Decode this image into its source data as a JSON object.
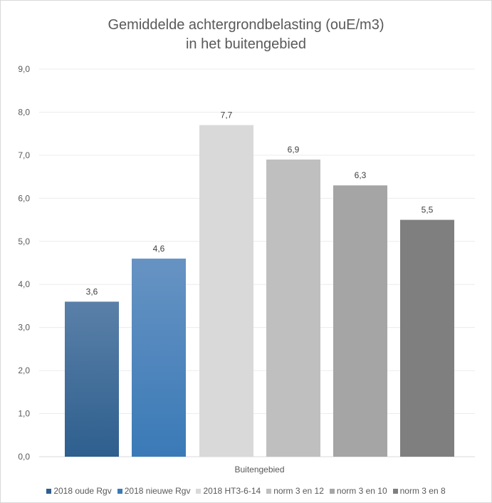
{
  "chart_data": {
    "type": "bar",
    "title_lines": [
      "Gemiddelde achtergrondbelasting (ouE/m3)",
      "in het buitengebied"
    ],
    "categories": [
      "Buitengebied"
    ],
    "ylim": [
      0,
      9
    ],
    "y_ticks": [
      "0,0",
      "1,0",
      "2,0",
      "3,0",
      "4,0",
      "5,0",
      "6,0",
      "7,0",
      "8,0",
      "9,0"
    ],
    "grid": true,
    "legend_position": "bottom",
    "series": [
      {
        "name": "2018 oude Rgv",
        "values": [
          3.6
        ],
        "label": "3,6",
        "color": "#2e5f8e",
        "color_top": "#5a80a8"
      },
      {
        "name": "2018 nieuwe Rgv",
        "values": [
          4.6
        ],
        "label": "4,6",
        "color": "#3a7ab7",
        "color_top": "#6793c3"
      },
      {
        "name": "2018 HT3-6-14",
        "values": [
          7.7
        ],
        "label": "7,7",
        "color": "#d9d9d9",
        "color_top": "#d9d9d9"
      },
      {
        "name": "norm 3 en 12",
        "values": [
          6.9
        ],
        "label": "6,9",
        "color": "#bfbfbf",
        "color_top": "#bfbfbf"
      },
      {
        "name": "norm 3 en 10",
        "values": [
          6.3
        ],
        "label": "6,3",
        "color": "#a5a5a5",
        "color_top": "#a5a5a5"
      },
      {
        "name": "norm 3 en 8",
        "values": [
          5.5
        ],
        "label": "5,5",
        "color": "#7f7f7f",
        "color_top": "#7f7f7f"
      }
    ]
  }
}
